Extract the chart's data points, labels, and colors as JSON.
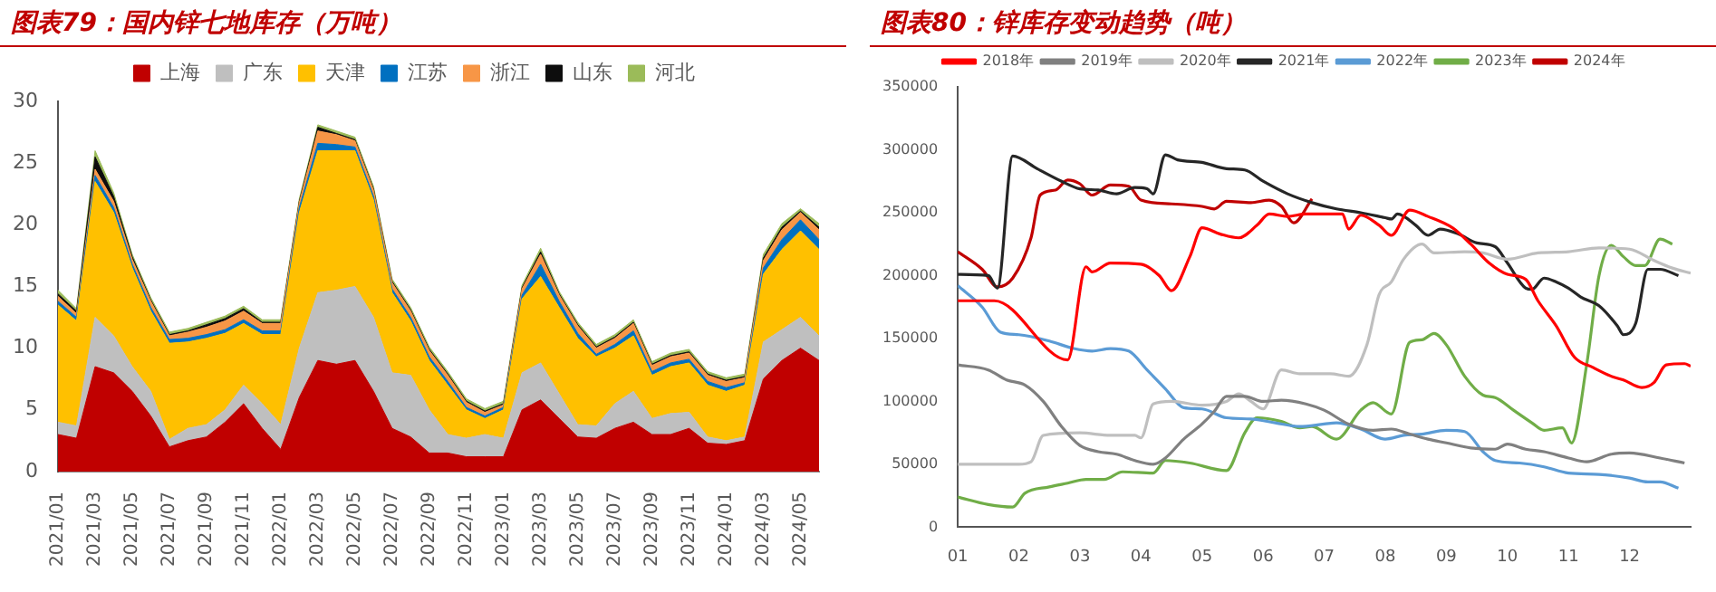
{
  "chart_data": [
    {
      "type": "area",
      "title": "图表79：国内锌七地库存（万吨）",
      "stacked": true,
      "legend": "top",
      "grid": false,
      "categories": [
        "2021/01",
        null,
        "2021/03",
        null,
        "2021/05",
        null,
        "2021/07",
        null,
        "2021/09",
        null,
        "2021/11",
        null,
        "2022/01",
        null,
        "2022/03",
        null,
        "2022/05",
        null,
        "2022/07",
        null,
        "2022/09",
        null,
        "2022/11",
        null,
        "2023/01",
        null,
        "2023/03",
        null,
        "2023/05",
        null,
        "2023/07",
        null,
        "2023/09",
        null,
        "2023/11",
        null,
        "2024/01",
        null,
        "2024/03",
        null,
        "2024/05",
        null
      ],
      "ylim": [
        0,
        30
      ],
      "yticks": [
        0,
        5,
        10,
        15,
        20,
        25,
        30
      ],
      "series": [
        {
          "name": "上海",
          "color": "#c00000",
          "values": [
            3,
            2.7,
            8.5,
            8,
            6.5,
            4.5,
            2,
            2.5,
            2.8,
            4,
            5.5,
            3.5,
            1.8,
            6,
            9,
            8.7,
            9,
            6.5,
            3.5,
            2.8,
            1.5,
            1.5,
            1.2,
            1.2,
            1.2,
            5,
            5.8,
            4.3,
            2.8,
            2.7,
            3.5,
            4,
            3,
            3,
            3.5,
            2.3,
            2.2,
            2.5,
            7.5,
            9,
            10,
            9
          ]
        },
        {
          "name": "广东",
          "color": "#bfbfbf",
          "values": [
            1,
            1,
            4,
            3,
            2,
            2,
            0.6,
            1,
            1,
            1,
            1.5,
            2,
            2,
            4,
            5.5,
            6,
            6,
            6,
            4.5,
            5,
            3.5,
            1.5,
            1.5,
            1.8,
            1.5,
            3,
            3,
            2,
            1,
            1,
            2,
            2.5,
            1.3,
            1.7,
            1.3,
            0.5,
            0.3,
            0.3,
            3,
            2.5,
            2.5,
            2
          ]
        },
        {
          "name": "天津",
          "color": "#ffc000",
          "values": [
            9.5,
            8.5,
            11,
            10,
            8,
            6.5,
            7.8,
            7,
            7,
            6.2,
            5,
            5.6,
            7.3,
            11,
            11.5,
            11.3,
            11,
            9.5,
            6.5,
            4.4,
            4,
            4,
            2.3,
            1.3,
            2.3,
            6,
            7,
            7,
            7,
            5.6,
            4.5,
            4.5,
            3.5,
            3.8,
            4,
            4.2,
            4,
            4.2,
            5.5,
            6.5,
            7,
            7
          ]
        },
        {
          "name": "江苏",
          "color": "#0070c0",
          "values": [
            0.3,
            0.3,
            0.5,
            0.4,
            0.3,
            0.3,
            0.3,
            0.3,
            0.3,
            0.3,
            0.3,
            0.3,
            0.3,
            0.4,
            0.6,
            0.5,
            0.3,
            0.3,
            0.3,
            0.3,
            0.3,
            0.3,
            0.2,
            0.2,
            0.2,
            0.3,
            1,
            0.5,
            0.4,
            0.2,
            0.3,
            0.4,
            0.3,
            0.3,
            0.3,
            0.3,
            0.3,
            0.2,
            0.5,
            0.8,
            0.9,
            0.8
          ]
        },
        {
          "name": "浙江",
          "color": "#f79646",
          "values": [
            0.4,
            0.3,
            0.5,
            0.5,
            0.4,
            0.5,
            0.3,
            0.5,
            0.6,
            0.7,
            0.7,
            0.6,
            0.6,
            0.4,
            1,
            0.8,
            0.5,
            0.5,
            0.5,
            0.5,
            0.5,
            0.5,
            0.4,
            0.3,
            0.2,
            0.5,
            0.8,
            0.5,
            0.6,
            0.5,
            0.5,
            0.6,
            0.5,
            0.5,
            0.5,
            0.5,
            0.5,
            0.4,
            0.6,
            0.8,
            0.6,
            0.8
          ]
        },
        {
          "name": "山东",
          "color": "#0d0d0d",
          "values": [
            0.2,
            0.2,
            1,
            0.4,
            0.2,
            0.1,
            0.1,
            0.1,
            0.2,
            0.2,
            0.2,
            0.1,
            0.1,
            0.1,
            0.3,
            0.1,
            0.1,
            0.1,
            0.1,
            0.1,
            0.1,
            0.1,
            0.1,
            0.1,
            0.1,
            0.1,
            0.2,
            0.1,
            0.1,
            0.1,
            0.1,
            0.1,
            0.1,
            0.1,
            0.1,
            0.1,
            0.1,
            0.1,
            0.2,
            0.2,
            0.1,
            0.2
          ]
        },
        {
          "name": "河北",
          "color": "#9bbb59",
          "values": [
            0.3,
            0.2,
            0.5,
            0.3,
            0.2,
            0.2,
            0.2,
            0.2,
            0.2,
            0.2,
            0.2,
            0.2,
            0.2,
            0.2,
            0.2,
            0.2,
            0.2,
            0.2,
            0.2,
            0.2,
            0.2,
            0.2,
            0.2,
            0.2,
            0.2,
            0.2,
            0.3,
            0.2,
            0.2,
            0.2,
            0.2,
            0.2,
            0.2,
            0.2,
            0.2,
            0.2,
            0.2,
            0.2,
            0.3,
            0.3,
            0.2,
            0.3
          ]
        }
      ]
    },
    {
      "type": "line",
      "title": "图表80：锌库存变动趋势（吨）",
      "legend": "top",
      "grid": false,
      "xlim": [
        1,
        13
      ],
      "xticks": [
        {
          "value": 1,
          "label": "01"
        },
        {
          "value": 2,
          "label": "02"
        },
        {
          "value": 3,
          "label": "03"
        },
        {
          "value": 4,
          "label": "04"
        },
        {
          "value": 5,
          "label": "05"
        },
        {
          "value": 6,
          "label": "06"
        },
        {
          "value": 7,
          "label": "07"
        },
        {
          "value": 8,
          "label": "08"
        },
        {
          "value": 9,
          "label": "09"
        },
        {
          "value": 10,
          "label": "10"
        },
        {
          "value": 11,
          "label": "11"
        },
        {
          "value": 12,
          "label": "12"
        }
      ],
      "ylim": [
        0,
        350000
      ],
      "yticks": [
        0,
        50000,
        100000,
        150000,
        200000,
        250000,
        300000,
        350000
      ],
      "series": [
        {
          "name": "2018年",
          "color": "#ff0000",
          "x": [
            1,
            1.6,
            2.8,
            3.1,
            3.2,
            3.5,
            4.0,
            4.3,
            4.5,
            4.8,
            5.0,
            5.3,
            5.6,
            5.9,
            6.1,
            6.4,
            6.7,
            7.3,
            7.4,
            7.6,
            7.9,
            8.1,
            8.4,
            8.7,
            9.1,
            9.4,
            9.7,
            10.0,
            10.3,
            10.5,
            10.8,
            11.1,
            11.4,
            11.7,
            11.9,
            12.2,
            12.4,
            12.6,
            12.9,
            13
          ],
          "values": [
            180000,
            180000,
            133000,
            207000,
            203000,
            210000,
            209000,
            200000,
            188000,
            215000,
            238000,
            233000,
            230000,
            240000,
            249000,
            247000,
            249000,
            249000,
            237000,
            248000,
            240000,
            232000,
            252000,
            247000,
            238000,
            225000,
            210000,
            201000,
            197000,
            180000,
            160000,
            135000,
            127000,
            120000,
            117000,
            111000,
            115000,
            129000,
            130000,
            128000
          ]
        },
        {
          "name": "2019年",
          "color": "#808080",
          "x": [
            1,
            1.5,
            1.8,
            2.1,
            2.4,
            2.7,
            3.0,
            3.3,
            3.6,
            3.9,
            4.2,
            4.4,
            4.7,
            5.0,
            5.2,
            5.4,
            5.7,
            6.0,
            6.3,
            6.7,
            7.0,
            7.4,
            7.8,
            8.1,
            8.4,
            8.7,
            9.0,
            9.4,
            9.8,
            10.0,
            10.3,
            10.6,
            11.0,
            11.3,
            11.7,
            12.0,
            12.5,
            12.9
          ],
          "values": [
            129000,
            125000,
            117000,
            113000,
            100000,
            80000,
            65000,
            60000,
            58000,
            53000,
            50000,
            55000,
            70000,
            82000,
            92000,
            104000,
            104000,
            100000,
            101000,
            98000,
            93000,
            82000,
            77000,
            78000,
            74000,
            70000,
            67000,
            63000,
            62000,
            66000,
            62000,
            60000,
            55000,
            52000,
            58000,
            59000,
            55000,
            51000
          ]
        },
        {
          "name": "2020年",
          "color": "#bfbfbf",
          "x": [
            1,
            2,
            2.2,
            2.4,
            3.0,
            3.5,
            3.9,
            4.0,
            4.2,
            4.5,
            5.0,
            5.4,
            5.6,
            5.8,
            6.0,
            6.3,
            6.6,
            7.1,
            7.4,
            7.7,
            7.9,
            8.1,
            8.3,
            8.6,
            8.8,
            9.3,
            9.6,
            10.0,
            10.5,
            11.0,
            11.5,
            12.0,
            12.4,
            12.7,
            13
          ],
          "values": [
            50000,
            50000,
            52000,
            73000,
            75000,
            73000,
            73000,
            71000,
            98000,
            100000,
            97000,
            100000,
            106000,
            100000,
            94000,
            125000,
            122000,
            122000,
            120000,
            145000,
            185000,
            195000,
            213000,
            225000,
            218000,
            219000,
            218000,
            213000,
            218000,
            219000,
            222000,
            221000,
            212000,
            206000,
            202000
          ]
        },
        {
          "name": "2021年",
          "color": "#262626",
          "x": [
            1,
            1.5,
            1.65,
            1.9,
            2.3,
            2.7,
            3.0,
            3.3,
            3.6,
            3.9,
            4.1,
            4.2,
            4.4,
            4.6,
            5.0,
            5.4,
            5.7,
            6.0,
            6.4,
            6.8,
            7.2,
            7.6,
            8.0,
            8.1,
            8.2,
            8.5,
            8.7,
            8.9,
            9.2,
            9.5,
            9.8,
            10.0,
            10.3,
            10.4,
            10.6,
            10.8,
            11.0,
            11.2,
            11.5,
            11.8,
            11.9,
            12.1,
            12.3,
            12.5,
            12.8
          ],
          "values": [
            201000,
            200000,
            190000,
            295000,
            285000,
            275000,
            269000,
            268000,
            265000,
            270000,
            269000,
            265000,
            296000,
            292000,
            290000,
            285000,
            284000,
            275000,
            265000,
            258000,
            253000,
            250000,
            246000,
            245000,
            249000,
            240000,
            232000,
            237000,
            233000,
            226000,
            223000,
            210000,
            190000,
            189000,
            198000,
            195000,
            190000,
            183000,
            176000,
            160000,
            153000,
            162000,
            205000,
            205000,
            200000
          ]
        },
        {
          "name": "2022年",
          "color": "#5b9bd5",
          "x": [
            1,
            1.4,
            1.7,
            2.0,
            2.5,
            2.9,
            3.2,
            3.5,
            3.8,
            4.1,
            4.4,
            4.7,
            5.0,
            5.4,
            5.8,
            6.2,
            6.6,
            7.0,
            7.2,
            7.6,
            8.0,
            8.3,
            8.6,
            9.0,
            9.3,
            9.6,
            9.8,
            10.2,
            10.6,
            11.0,
            11.5,
            12.0,
            12.3,
            12.5,
            12.8
          ],
          "values": [
            192000,
            175000,
            155000,
            153000,
            148000,
            142000,
            140000,
            142000,
            140000,
            125000,
            110000,
            95000,
            94000,
            87000,
            86000,
            83000,
            80000,
            82000,
            83000,
            78000,
            70000,
            73000,
            74000,
            77000,
            76000,
            60000,
            53000,
            51000,
            48000,
            43000,
            42000,
            39000,
            36000,
            36000,
            31000
          ]
        },
        {
          "name": "2023年",
          "color": "#70ad47",
          "x": [
            1,
            1.5,
            1.9,
            2.1,
            2.5,
            2.8,
            3.1,
            3.4,
            3.7,
            4.2,
            4.4,
            4.8,
            5.4,
            5.7,
            5.9,
            6.3,
            6.6,
            6.8,
            7.2,
            7.6,
            7.8,
            8.1,
            8.4,
            8.6,
            8.8,
            9.0,
            9.3,
            9.6,
            9.8,
            10.1,
            10.4,
            10.6,
            10.9,
            11.05,
            11.3,
            11.5,
            11.7,
            11.9,
            12.1,
            12.25,
            12.5,
            12.7
          ],
          "values": [
            24000,
            18000,
            16000,
            27000,
            32000,
            35000,
            38000,
            38000,
            44000,
            43000,
            53000,
            51000,
            45000,
            75000,
            87000,
            84000,
            79000,
            80000,
            70000,
            93000,
            99000,
            90000,
            147000,
            149000,
            154000,
            145000,
            120000,
            105000,
            103000,
            93000,
            83000,
            77000,
            79000,
            67000,
            130000,
            200000,
            224000,
            215000,
            208000,
            208000,
            229000,
            225000
          ]
        },
        {
          "name": "2024年",
          "color": "#c00000",
          "x": [
            1,
            1.4,
            1.65,
            1.9,
            2.2,
            2.35,
            2.6,
            2.8,
            3.0,
            3.2,
            3.5,
            3.8,
            4.0,
            4.5,
            5.0,
            5.2,
            5.4,
            5.8,
            6.1,
            6.3,
            6.5,
            6.8
          ],
          "values": [
            219000,
            205000,
            191000,
            198000,
            230000,
            264000,
            268000,
            276000,
            273000,
            264000,
            272000,
            271000,
            260000,
            257000,
            255000,
            253000,
            259000,
            258000,
            260000,
            255000,
            242000,
            261000
          ]
        }
      ]
    }
  ]
}
